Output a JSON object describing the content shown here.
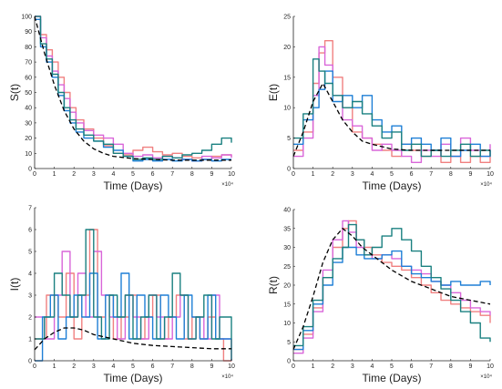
{
  "colors": {
    "series": [
      "#f08080",
      "#d966d9",
      "#1e7fd6",
      "#1a8080"
    ],
    "mean": "#000000",
    "axis": "#222222"
  },
  "chart_data": [
    {
      "type": "line",
      "ylabel": "S(t)",
      "xlabel": "Time (Days)",
      "xlim": [
        0,
        10
      ],
      "ylim": [
        0,
        100
      ],
      "xticks": [
        "0",
        "1",
        "2",
        "3",
        "4",
        "5",
        "6",
        "7",
        "8",
        "9",
        "10"
      ],
      "yticks": [
        "0",
        "10",
        "20",
        "30",
        "40",
        "50",
        "60",
        "70",
        "80",
        "90",
        "100"
      ],
      "x_multiplier": "×10⁴",
      "series": [
        {
          "x": [
            0,
            0.3,
            0.6,
            0.9,
            1.2,
            1.5,
            1.8,
            2.1,
            2.5,
            3,
            3.5,
            4,
            4.5,
            5,
            5.5,
            6,
            6.5,
            7,
            7.5,
            8,
            8.5,
            9,
            9.5,
            10
          ],
          "values": [
            100,
            88,
            78,
            70,
            60,
            50,
            40,
            32,
            26,
            20,
            15,
            10,
            9,
            12,
            14,
            11,
            9,
            10,
            8,
            7,
            6,
            8,
            9,
            8
          ]
        },
        {
          "x": [
            0,
            0.3,
            0.6,
            0.9,
            1.2,
            1.5,
            1.8,
            2.1,
            2.5,
            3,
            3.5,
            4,
            4.5,
            5,
            5.5,
            6,
            6.5,
            7,
            7.5,
            8,
            8.5,
            9,
            9.5,
            10
          ],
          "values": [
            100,
            86,
            74,
            64,
            55,
            46,
            37,
            30,
            25,
            22,
            20,
            16,
            10,
            8,
            9,
            7,
            8,
            7,
            6,
            5,
            8,
            7,
            9,
            7
          ]
        },
        {
          "x": [
            0,
            0.3,
            0.6,
            0.9,
            1.2,
            1.5,
            1.8,
            2.1,
            2.5,
            3,
            3.5,
            4,
            4.5,
            5,
            5.5,
            6,
            6.5,
            7,
            7.5,
            8,
            8.5,
            9,
            9.5,
            10
          ],
          "values": [
            98,
            80,
            70,
            60,
            48,
            38,
            30,
            24,
            20,
            18,
            14,
            12,
            8,
            5,
            6,
            5,
            6,
            5,
            6,
            5,
            6,
            5,
            6,
            6
          ]
        },
        {
          "x": [
            0,
            0.3,
            0.6,
            0.9,
            1.2,
            1.5,
            1.8,
            2.1,
            2.5,
            3,
            3.5,
            4,
            4.5,
            5,
            5.5,
            6,
            6.5,
            7,
            7.5,
            8,
            8.5,
            9,
            9.5,
            10
          ],
          "values": [
            100,
            82,
            72,
            62,
            50,
            40,
            32,
            26,
            22,
            18,
            16,
            10,
            8,
            6,
            7,
            6,
            8,
            7,
            9,
            10,
            12,
            16,
            20,
            17
          ]
        }
      ],
      "mean": {
        "x": [
          0,
          0.5,
          1,
          1.5,
          2,
          2.5,
          3,
          3.5,
          4,
          5,
          6,
          7,
          8,
          9,
          10
        ],
        "values": [
          100,
          76,
          55,
          38,
          26,
          18,
          13,
          10,
          8,
          6.5,
          6,
          5.5,
          5.5,
          5.5,
          5.5
        ]
      }
    },
    {
      "type": "line",
      "ylabel": "E(t)",
      "xlabel": "Time (Days)",
      "xlim": [
        0,
        10
      ],
      "ylim": [
        0,
        25
      ],
      "xticks": [
        "0",
        "1",
        "2",
        "3",
        "4",
        "5",
        "6",
        "7",
        "8",
        "9",
        "10"
      ],
      "yticks": [
        "0",
        "5",
        "10",
        "15",
        "20",
        "25"
      ],
      "x_multiplier": "×10⁴",
      "series": [
        {
          "x": [
            0,
            0.5,
            1,
            1.3,
            1.6,
            2,
            2.5,
            3,
            3.5,
            4,
            4.5,
            5,
            5.5,
            6,
            6.5,
            7,
            7.5,
            8,
            8.5,
            9,
            9.5,
            10
          ],
          "values": [
            3,
            6,
            14,
            19,
            21,
            15,
            10,
            6,
            5,
            4,
            3,
            2,
            4,
            3,
            2,
            3,
            1,
            2,
            1,
            2,
            1,
            3
          ]
        },
        {
          "x": [
            0,
            0.5,
            1,
            1.3,
            1.6,
            2,
            2.5,
            3,
            3.5,
            4,
            4.5,
            5,
            5.5,
            6,
            6.5,
            7,
            7.5,
            8,
            8.5,
            9,
            9.5,
            10
          ],
          "values": [
            2,
            5,
            12,
            20,
            17,
            12,
            8,
            7,
            5,
            3,
            4,
            3,
            2,
            1,
            3,
            2,
            4,
            2,
            5,
            3,
            2,
            4
          ]
        },
        {
          "x": [
            0,
            0.5,
            1,
            1.3,
            1.6,
            2,
            2.5,
            3,
            3.5,
            4,
            4.5,
            5,
            5.5,
            6,
            6.5,
            7,
            7.5,
            8,
            8.5,
            9,
            9.5,
            10
          ],
          "values": [
            4,
            8,
            10,
            13,
            16,
            11,
            12,
            10,
            12,
            8,
            6,
            7,
            4,
            5,
            4,
            3,
            5,
            2,
            3,
            4,
            2,
            3
          ]
        },
        {
          "x": [
            0,
            0.5,
            1,
            1.3,
            1.6,
            2,
            2.5,
            3,
            3.5,
            4,
            4.5,
            5,
            5.5,
            6,
            6.5,
            7,
            7.5,
            8,
            8.5,
            9,
            9.5,
            10
          ],
          "values": [
            5,
            9,
            18,
            16,
            14,
            12,
            10,
            11,
            9,
            7,
            5,
            6,
            3,
            4,
            2,
            3,
            2,
            3,
            4,
            2,
            3,
            2
          ]
        }
      ],
      "mean": {
        "x": [
          0,
          0.5,
          1,
          1.5,
          2,
          2.5,
          3,
          3.5,
          4,
          5,
          6,
          7,
          8,
          9,
          10
        ],
        "values": [
          2,
          6,
          11,
          14,
          11,
          8,
          6,
          4.5,
          4,
          3.2,
          3,
          3,
          3,
          3,
          3
        ]
      }
    },
    {
      "type": "line",
      "ylabel": "I(t)",
      "xlabel": "Time (Days)",
      "xlim": [
        0,
        10
      ],
      "ylim": [
        0,
        7
      ],
      "xticks": [
        "0",
        "1",
        "2",
        "3",
        "4",
        "5",
        "6",
        "7",
        "8",
        "9",
        "10"
      ],
      "yticks": [
        "0",
        "1",
        "2",
        "3",
        "4",
        "5",
        "6",
        "7"
      ],
      "x_multiplier": "×10⁴",
      "series": [
        {
          "x": [
            0,
            0.6,
            1.2,
            1.6,
            2.0,
            2.4,
            2.8,
            3.2,
            3.6,
            4.0,
            4.4,
            4.8,
            5.2,
            5.6,
            6.0,
            6.4,
            6.8,
            7.2,
            7.6,
            8.0,
            8.4,
            8.8,
            9.2,
            9.6,
            10
          ],
          "values": [
            1,
            3,
            2,
            4,
            1,
            3,
            6,
            2,
            3,
            1,
            2,
            3,
            1,
            2,
            3,
            1,
            2,
            3,
            1,
            2,
            1,
            2,
            1,
            0,
            1
          ]
        },
        {
          "x": [
            0,
            0.5,
            1.0,
            1.4,
            1.8,
            2.2,
            2.6,
            3.0,
            3.4,
            3.8,
            4.2,
            4.6,
            5.0,
            5.4,
            5.8,
            6.2,
            6.6,
            7.0,
            7.4,
            7.8,
            8.2,
            8.6,
            9.0,
            9.4,
            10
          ],
          "values": [
            2,
            1,
            3,
            5,
            2,
            4,
            2,
            5,
            3,
            2,
            1,
            3,
            2,
            1,
            3,
            2,
            1,
            2,
            3,
            1,
            2,
            1,
            3,
            1,
            0
          ]
        },
        {
          "x": [
            0,
            0.4,
            0.8,
            1.2,
            1.6,
            2.0,
            2.4,
            2.8,
            3.2,
            3.6,
            4.0,
            4.4,
            4.8,
            5.2,
            5.6,
            6.0,
            6.4,
            6.8,
            7.2,
            7.6,
            8.0,
            8.4,
            8.8,
            9.2,
            10
          ],
          "values": [
            0,
            2,
            3,
            1,
            2,
            3,
            2,
            4,
            1,
            3,
            2,
            4,
            1,
            3,
            2,
            1,
            3,
            2,
            1,
            3,
            2,
            1,
            3,
            1,
            1
          ]
        },
        {
          "x": [
            0,
            0.5,
            1.0,
            1.4,
            1.8,
            2.2,
            2.6,
            3.0,
            3.4,
            3.8,
            4.2,
            4.6,
            5.0,
            5.4,
            5.8,
            6.2,
            6.6,
            7.0,
            7.4,
            7.8,
            8.2,
            8.6,
            9.0,
            9.4,
            10
          ],
          "values": [
            1,
            2,
            4,
            3,
            2,
            3,
            6,
            2,
            1,
            3,
            2,
            3,
            1,
            2,
            3,
            1,
            2,
            4,
            3,
            1,
            2,
            3,
            1,
            2,
            0
          ]
        }
      ],
      "mean": {
        "x": [
          0,
          0.5,
          1,
          1.5,
          2,
          2.5,
          3,
          3.5,
          4,
          5,
          6,
          7,
          8,
          9,
          10
        ],
        "values": [
          0.5,
          1.0,
          1.3,
          1.5,
          1.5,
          1.4,
          1.2,
          1.1,
          1.0,
          0.8,
          0.7,
          0.65,
          0.6,
          0.55,
          0.55
        ]
      }
    },
    {
      "type": "line",
      "ylabel": "R(t)",
      "xlabel": "Time (Days)",
      "xlim": [
        0,
        10
      ],
      "ylim": [
        0,
        40
      ],
      "xticks": [
        "0",
        "1",
        "2",
        "3",
        "4",
        "5",
        "6",
        "7",
        "8",
        "9",
        "10"
      ],
      "yticks": [
        "0",
        "5",
        "10",
        "15",
        "20",
        "25",
        "30",
        "35",
        "40"
      ],
      "x_multiplier": "×10⁴",
      "series": [
        {
          "x": [
            0,
            0.5,
            1,
            1.5,
            2,
            2.5,
            2.8,
            3.2,
            3.6,
            4,
            4.5,
            5,
            5.5,
            6,
            6.5,
            7,
            7.5,
            8,
            8.5,
            9,
            9.5,
            10
          ],
          "values": [
            3,
            7,
            14,
            22,
            30,
            35,
            37,
            32,
            30,
            28,
            26,
            25,
            24,
            22,
            20,
            18,
            16,
            15,
            14,
            13,
            12,
            10
          ]
        },
        {
          "x": [
            0,
            0.5,
            1,
            1.5,
            2,
            2.5,
            2.8,
            3.2,
            3.6,
            4,
            4.5,
            5,
            5.5,
            6,
            6.5,
            7,
            7.5,
            8,
            8.5,
            9,
            9.5,
            10
          ],
          "values": [
            2,
            6,
            13,
            24,
            32,
            37,
            34,
            30,
            28,
            27,
            28,
            27,
            25,
            24,
            23,
            21,
            20,
            18,
            16,
            14,
            13,
            12
          ]
        },
        {
          "x": [
            0,
            0.5,
            1,
            1.5,
            2,
            2.5,
            2.8,
            3.2,
            3.6,
            4,
            4.5,
            5,
            5.5,
            6,
            6.5,
            7,
            7.5,
            8,
            8.5,
            9,
            9.5,
            10
          ],
          "values": [
            3,
            8,
            15,
            20,
            26,
            30,
            30,
            28,
            27,
            27,
            28,
            29,
            25,
            23,
            22,
            21,
            20,
            21,
            20,
            20,
            21,
            20
          ]
        },
        {
          "x": [
            0,
            0.5,
            1,
            1.5,
            2,
            2.5,
            2.8,
            3.2,
            3.6,
            4,
            4.5,
            5,
            5.5,
            6,
            6.5,
            7,
            7.5,
            8,
            8.5,
            9,
            9.5,
            10
          ],
          "values": [
            4,
            9,
            16,
            22,
            27,
            30,
            36,
            32,
            28,
            30,
            33,
            35,
            32,
            29,
            25,
            22,
            19,
            16,
            13,
            10,
            6,
            5
          ]
        }
      ],
      "mean": {
        "x": [
          0,
          0.5,
          1,
          1.5,
          2,
          2.5,
          3,
          3.5,
          4,
          5,
          6,
          7,
          8,
          9,
          10
        ],
        "values": [
          3,
          9,
          17,
          26,
          32,
          35,
          33,
          30,
          28,
          24,
          21,
          19,
          17,
          16,
          15
        ]
      }
    }
  ]
}
